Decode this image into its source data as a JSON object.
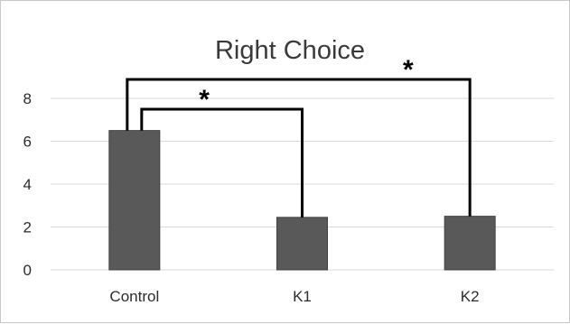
{
  "chart_data": {
    "type": "bar",
    "title": "Right Choice",
    "xlabel": "",
    "ylabel": "",
    "categories": [
      "Control",
      "K1",
      "K2"
    ],
    "values": [
      6.5,
      2.45,
      2.5
    ],
    "ylim": [
      0,
      8
    ],
    "yticks": [
      "0",
      "2",
      "4",
      "6",
      "8"
    ],
    "grid": true,
    "legend": "none",
    "bar_color": "#595959",
    "annotations": [
      {
        "type": "significance-bracket",
        "from": "Control",
        "to": "K1",
        "label": "*"
      },
      {
        "type": "significance-bracket",
        "from": "Control",
        "to": "K2",
        "label": "*"
      }
    ]
  }
}
